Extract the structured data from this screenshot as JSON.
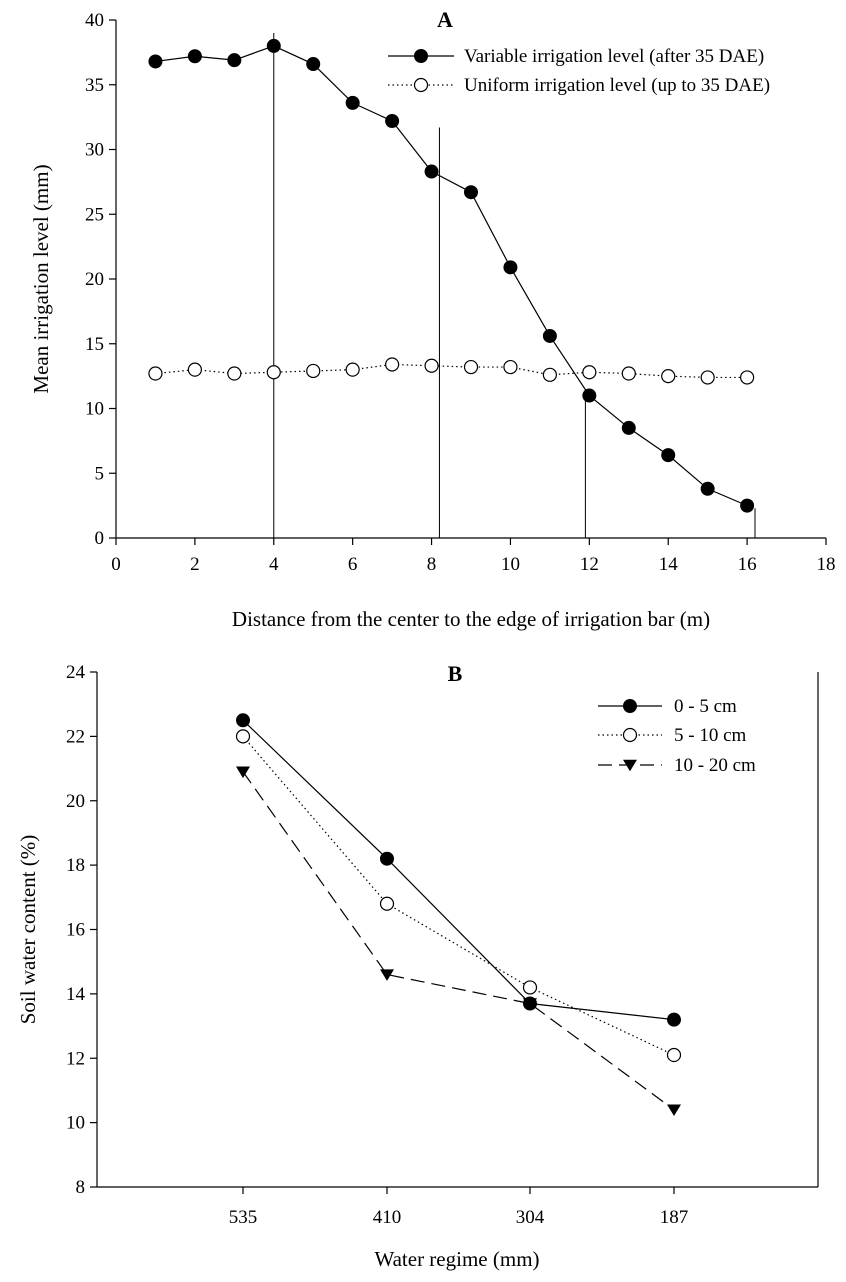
{
  "chart_data": [
    {
      "type": "line",
      "panel": "A",
      "xlabel": "Distance from the center to the edge of irrigation bar (m)",
      "ylabel": "Mean irrigation level (mm)",
      "xlim": [
        0,
        18
      ],
      "ylim": [
        0,
        40
      ],
      "xticks": [
        "0",
        "2",
        "4",
        "6",
        "8",
        "10",
        "12",
        "14",
        "16",
        "18"
      ],
      "yticks": [
        "0",
        "5",
        "10",
        "15",
        "20",
        "25",
        "30",
        "35",
        "40"
      ],
      "grid": false,
      "legend_position": "top-right",
      "reference_lines_x": [
        4,
        8.2,
        11.9,
        16.2
      ],
      "x": [
        1,
        2,
        3,
        4,
        5,
        6,
        7,
        8,
        9,
        10,
        11,
        12,
        13,
        14,
        15,
        16
      ],
      "series": [
        {
          "name": "Variable irrigation level (after 35 DAE)",
          "marker": "filled-circle",
          "line": "solid",
          "values": [
            36.8,
            37.2,
            36.9,
            38.0,
            36.6,
            33.6,
            32.2,
            28.3,
            26.7,
            20.9,
            15.6,
            11.0,
            8.5,
            6.4,
            3.8,
            2.5
          ]
        },
        {
          "name": "Uniform irrigation level (up to 35 DAE)",
          "marker": "open-circle",
          "line": "dotted",
          "values": [
            12.7,
            13.0,
            12.7,
            12.8,
            12.9,
            13.0,
            13.4,
            13.3,
            13.2,
            13.2,
            12.6,
            12.8,
            12.7,
            12.5,
            12.4,
            12.4
          ]
        }
      ]
    },
    {
      "type": "line",
      "panel": "B",
      "xlabel": "Water regime (mm)",
      "ylabel": "Soil water content (%)",
      "ylim": [
        8,
        24
      ],
      "categories": [
        "535",
        "410",
        "304",
        "187"
      ],
      "yticks": [
        "8",
        "10",
        "12",
        "14",
        "16",
        "18",
        "20",
        "22",
        "24"
      ],
      "grid": false,
      "legend_position": "top-right",
      "series": [
        {
          "name": "0 - 5 cm",
          "marker": "filled-circle",
          "line": "solid",
          "values": [
            22.5,
            18.2,
            13.7,
            13.2
          ]
        },
        {
          "name": "5 - 10 cm",
          "marker": "open-circle",
          "line": "dotted",
          "values": [
            22.0,
            16.8,
            14.2,
            12.1
          ]
        },
        {
          "name": "10 - 20 cm",
          "marker": "filled-triangle-down",
          "line": "dashed",
          "values": [
            20.9,
            14.6,
            13.7,
            10.4
          ]
        }
      ]
    }
  ]
}
